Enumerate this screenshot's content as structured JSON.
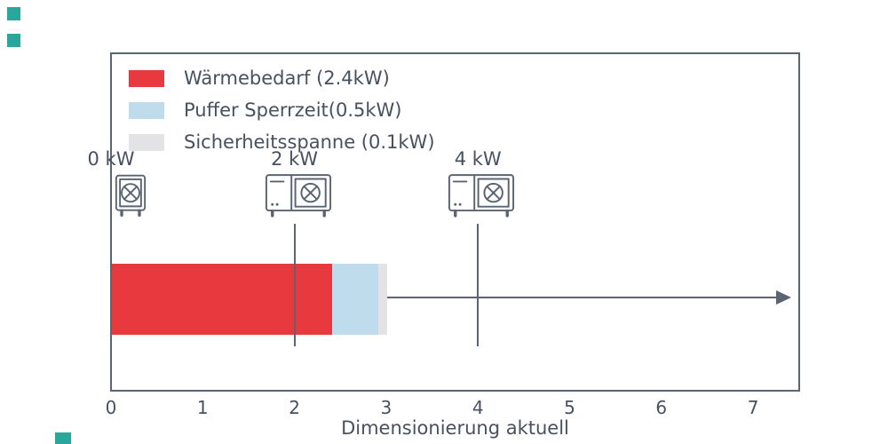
{
  "page": {
    "background": "#ffffff",
    "accent_teal": "#2aa79b",
    "axis_color": "#5b6472",
    "text_color": "#47515f"
  },
  "chart_data": {
    "type": "bar",
    "orientation": "horizontal",
    "xlabel": "Dimensionierung aktuell",
    "xlim": [
      0,
      7.5
    ],
    "x_ticks": [
      0,
      1,
      2,
      3,
      4,
      5,
      6,
      7
    ],
    "grid": false,
    "legend_position": "upper-left-inside",
    "series": [
      {
        "name": "Wärmebedarf (2.4kW)",
        "value": 2.4,
        "color": "#e8393e"
      },
      {
        "name": "Puffer Sperrzeit(0.5kW)",
        "value": 0.5,
        "color": "#bedcec"
      },
      {
        "name": "Sicherheitsspanne (0.1kW)",
        "value": 0.1,
        "color": "#e3e3e5"
      }
    ],
    "bar_total": 3.0,
    "markers": [
      {
        "label": "0 kW",
        "x": 0,
        "icon": "heat-pump-small-icon",
        "line": false
      },
      {
        "label": "2 kW",
        "x": 2,
        "icon": "heat-pump-large-icon",
        "line": true
      },
      {
        "label": "4 kW",
        "x": 4,
        "icon": "heat-pump-large-icon",
        "line": true
      }
    ]
  }
}
